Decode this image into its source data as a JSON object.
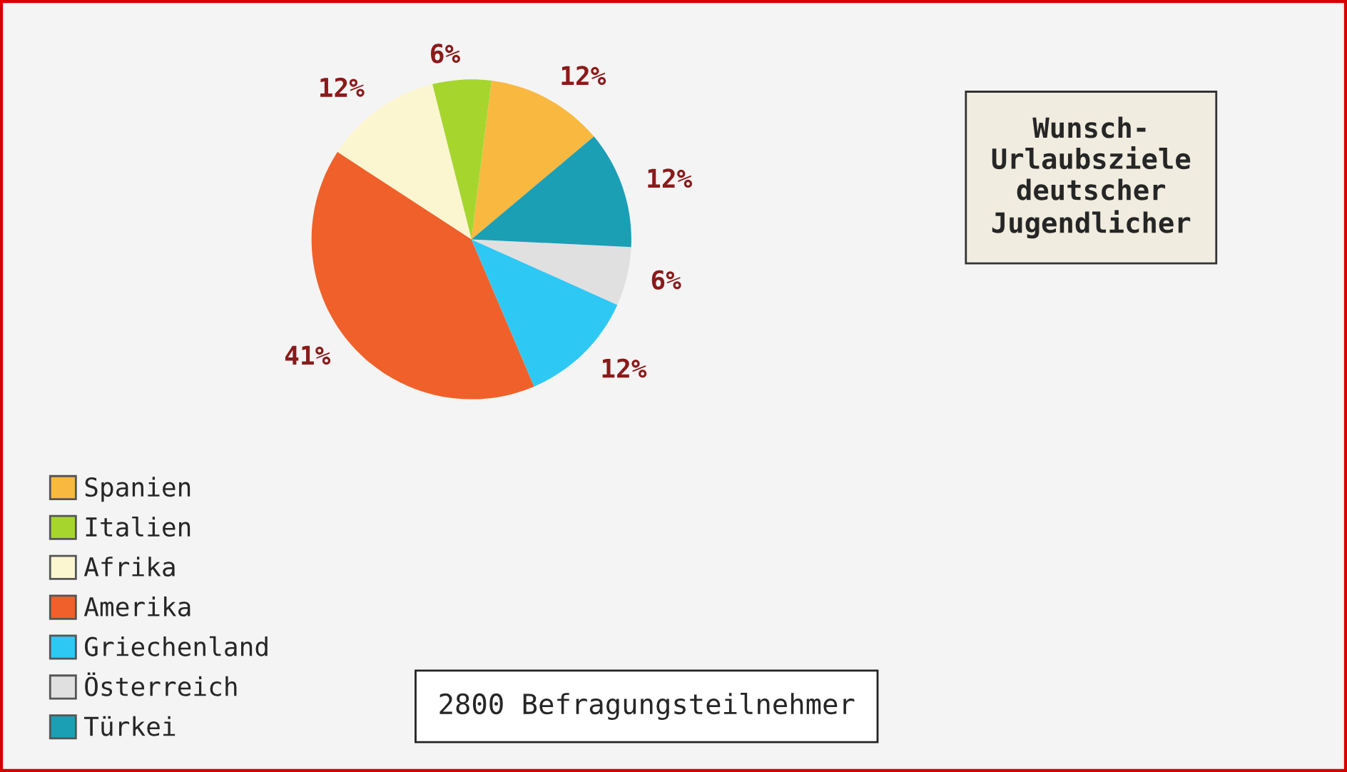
{
  "chart_data": {
    "type": "pie",
    "title": "Wunsch-\nUrlaubsziele\ndeutscher\nJugendlicher",
    "categories": [
      "Spanien",
      "Italien",
      "Afrika",
      "Amerika",
      "Griechenland",
      "Österreich",
      "Türkei"
    ],
    "values": [
      12,
      6,
      12,
      41,
      12,
      6,
      12
    ],
    "colors": [
      "#f9b840",
      "#a6d62e",
      "#fbf5d0",
      "#f0602a",
      "#2ec8f5",
      "#e0e0e0",
      "#1a9fb5"
    ],
    "value_labels": [
      "12%",
      "6%",
      "12%",
      "41%",
      "12%",
      "6%",
      "12%"
    ],
    "annotations": [
      "2800 Befragungsteilnehmer"
    ],
    "legend": "bottom left"
  }
}
